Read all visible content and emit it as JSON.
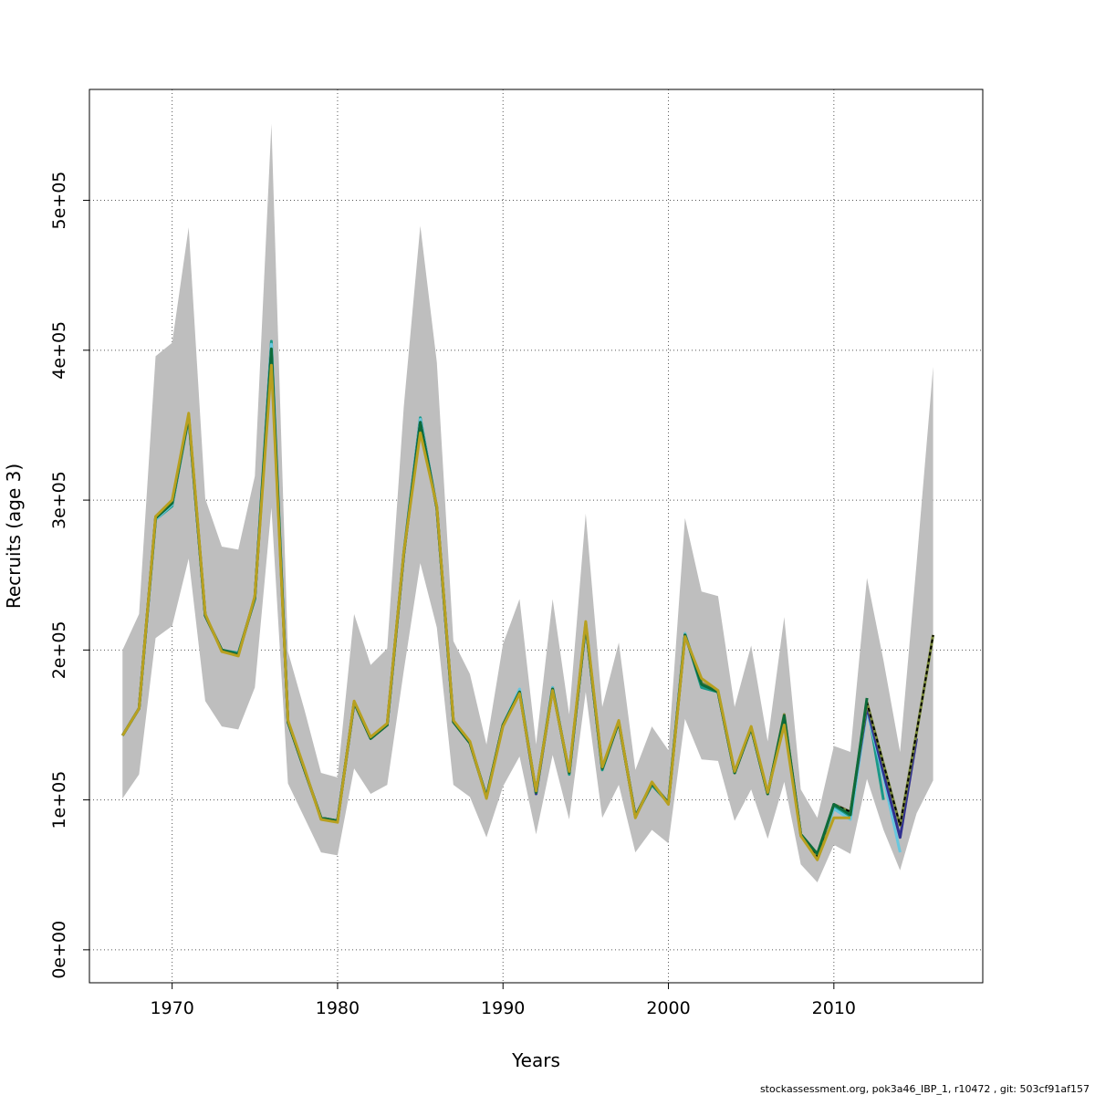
{
  "chart_data": {
    "type": "line",
    "title": "",
    "xlabel": "Years",
    "ylabel": "Recruits (age 3)",
    "xlim": [
      1965,
      2019
    ],
    "ylim": [
      -22000,
      574000
    ],
    "grid": true,
    "x_ticks": [
      1970,
      1980,
      1990,
      2000,
      2010
    ],
    "x_tick_labels": [
      "1970",
      "1980",
      "1990",
      "2000",
      "2010"
    ],
    "y_ticks": [
      0,
      100000,
      200000,
      300000,
      400000,
      500000
    ],
    "y_tick_labels": [
      "0e+00",
      "1e+05",
      "2e+05",
      "3e+05",
      "4e+05",
      "5e+05"
    ],
    "confidence_band": {
      "x": [
        1967,
        1968,
        1969,
        1970,
        1971,
        1972,
        1973,
        1974,
        1975,
        1976,
        1977,
        1978,
        1979,
        1980,
        1981,
        1982,
        1983,
        1984,
        1985,
        1986,
        1987,
        1988,
        1989,
        1990,
        1991,
        1992,
        1993,
        1994,
        1995,
        1996,
        1997,
        1998,
        1999,
        2000,
        2001,
        2002,
        2003,
        2004,
        2005,
        2006,
        2007,
        2008,
        2009,
        2010,
        2011,
        2012,
        2013,
        2014,
        2015,
        2016
      ],
      "lower": [
        101000,
        117000,
        208000,
        216000,
        261000,
        166000,
        149000,
        147000,
        175000,
        295000,
        111000,
        88000,
        65000,
        63000,
        121000,
        104000,
        110000,
        186000,
        258000,
        215000,
        110000,
        102000,
        75000,
        109000,
        129000,
        77000,
        130000,
        87000,
        172000,
        88000,
        110000,
        65000,
        80000,
        71000,
        154000,
        127000,
        126000,
        86000,
        107000,
        74000,
        112000,
        57000,
        45000,
        70000,
        64000,
        114000,
        80000,
        53000,
        91000,
        113000
      ],
      "upper": [
        200000,
        224000,
        396000,
        405000,
        482000,
        301000,
        269000,
        267000,
        316000,
        551000,
        199000,
        160000,
        118000,
        115000,
        224000,
        190000,
        201000,
        362000,
        483000,
        392000,
        206000,
        184000,
        137000,
        204000,
        234000,
        137000,
        234000,
        157000,
        291000,
        162000,
        205000,
        120000,
        149000,
        133000,
        288000,
        239000,
        236000,
        162000,
        203000,
        139000,
        222000,
        107000,
        88000,
        136000,
        132000,
        248000,
        193000,
        132000,
        258000,
        389000
      ]
    },
    "series": [
      {
        "color": "#1a9988",
        "x": [
          1967,
          1968,
          1969,
          1970,
          1971,
          1972,
          1973,
          1974,
          1975,
          1976,
          1977,
          1978,
          1979,
          1980,
          1981,
          1982,
          1983,
          1984,
          1985,
          1986,
          1987,
          1988,
          1989,
          1990,
          1991,
          1992,
          1993,
          1994,
          1995,
          1996,
          1997,
          1998,
          1999,
          2000,
          2001,
          2002,
          2003,
          2004,
          2005,
          2006,
          2007,
          2008,
          2009,
          2010,
          2011,
          2012,
          2013
        ],
        "y": [
          143000,
          161000,
          287000,
          296000,
          355000,
          223000,
          200000,
          198000,
          234000,
          406000,
          152000,
          120000,
          88000,
          86000,
          165000,
          141000,
          150000,
          265000,
          355000,
          295000,
          152000,
          138000,
          102000,
          150000,
          173000,
          105000,
          175000,
          117000,
          218000,
          120000,
          152000,
          89000,
          110000,
          98000,
          211000,
          175000,
          172000,
          118000,
          148000,
          104000,
          155000,
          77000,
          63000,
          95000,
          88000,
          165000,
          100000
        ]
      },
      {
        "color": "#67c7de",
        "x": [
          1967,
          1968,
          1969,
          1970,
          1971,
          1972,
          1973,
          1974,
          1975,
          1976,
          1977,
          1978,
          1979,
          1980,
          1981,
          1982,
          1983,
          1984,
          1985,
          1986,
          1987,
          1988,
          1989,
          1990,
          1991,
          1992,
          1993,
          1994,
          1995,
          1996,
          1997,
          1998,
          1999,
          2000,
          2001,
          2002,
          2003,
          2004,
          2005,
          2006,
          2007,
          2008,
          2009,
          2010,
          2011,
          2012,
          2013,
          2014
        ],
        "y": [
          143000,
          161000,
          287000,
          297000,
          356000,
          223000,
          200000,
          197000,
          235000,
          404000,
          152000,
          120000,
          88000,
          86000,
          165000,
          141000,
          150000,
          264000,
          354000,
          295000,
          152000,
          138000,
          102000,
          150000,
          174000,
          104000,
          175000,
          118000,
          217000,
          121000,
          152000,
          89000,
          111000,
          98000,
          211000,
          177000,
          173000,
          118000,
          148000,
          104000,
          156000,
          77000,
          62000,
          94000,
          87000,
          160000,
          115000,
          65000
        ]
      },
      {
        "color": "#303090",
        "x": [
          1967,
          1968,
          1969,
          1970,
          1971,
          1972,
          1973,
          1974,
          1975,
          1976,
          1977,
          1978,
          1979,
          1980,
          1981,
          1982,
          1983,
          1984,
          1985,
          1986,
          1987,
          1988,
          1989,
          1990,
          1991,
          1992,
          1993,
          1994,
          1995,
          1996,
          1997,
          1998,
          1999,
          2000,
          2001,
          2002,
          2003,
          2004,
          2005,
          2006,
          2007,
          2008,
          2009,
          2010,
          2011,
          2012,
          2013,
          2014,
          2015
        ],
        "y": [
          143000,
          161000,
          288000,
          298000,
          356000,
          223000,
          200000,
          197000,
          235000,
          400000,
          152000,
          120000,
          88000,
          86000,
          165000,
          141000,
          150000,
          264000,
          352000,
          295000,
          152000,
          138000,
          102000,
          150000,
          172000,
          104000,
          174000,
          118000,
          217000,
          121000,
          152000,
          89000,
          111000,
          98000,
          210000,
          178000,
          172000,
          118000,
          148000,
          104000,
          156000,
          77000,
          62000,
          97000,
          92000,
          162000,
          118000,
          75000,
          141000
        ]
      },
      {
        "color": "#7a8a3a",
        "x": [
          1967,
          1968,
          1969,
          1970,
          1971,
          1972,
          1973,
          1974,
          1975,
          1976,
          1977,
          1978,
          1979,
          1980,
          1981,
          1982,
          1983,
          1984,
          1985,
          1986,
          1987,
          1988,
          1989,
          1990,
          1991,
          1992,
          1993,
          1994,
          1995,
          1996,
          1997,
          1998,
          1999,
          2000,
          2001,
          2002,
          2003,
          2004,
          2005,
          2006,
          2007,
          2008,
          2009,
          2010,
          2011,
          2012,
          2013,
          2014,
          2015,
          2016
        ],
        "y": [
          143000,
          161000,
          288000,
          298000,
          356000,
          223000,
          200000,
          197000,
          235000,
          398000,
          152000,
          120000,
          88000,
          86000,
          165000,
          141000,
          150000,
          264000,
          350000,
          295000,
          152000,
          138000,
          102000,
          150000,
          172000,
          105000,
          174000,
          118000,
          217000,
          121000,
          152000,
          89000,
          111000,
          98000,
          210000,
          178000,
          172000,
          118000,
          148000,
          104000,
          157000,
          77000,
          62000,
          97000,
          92000,
          165000,
          124000,
          83000,
          145000,
          210000
        ],
        "dashed_overlay": true
      },
      {
        "color": "#0d6b3a",
        "x": [
          1967,
          1968,
          1969,
          1970,
          1971,
          1972,
          1973,
          1974,
          1975,
          1976,
          1977,
          1978,
          1979,
          1980,
          1981,
          1982,
          1983,
          1984,
          1985,
          1986,
          1987,
          1988,
          1989,
          1990,
          1991,
          1992,
          1993,
          1994,
          1995,
          1996,
          1997,
          1998,
          1999,
          2000,
          2001,
          2002,
          2003,
          2004,
          2005,
          2006,
          2007,
          2008,
          2009,
          2010,
          2011,
          2012
        ],
        "y": [
          143000,
          161000,
          288000,
          298000,
          356000,
          223000,
          200000,
          197000,
          235000,
          401000,
          152000,
          120000,
          88000,
          86000,
          165000,
          141000,
          150000,
          264000,
          352000,
          295000,
          152000,
          138000,
          102000,
          150000,
          172000,
          105000,
          174000,
          118000,
          217000,
          121000,
          152000,
          89000,
          111000,
          98000,
          210000,
          177000,
          172000,
          118000,
          148000,
          104000,
          156000,
          77000,
          64000,
          97000,
          90000,
          168000
        ]
      },
      {
        "color": "#b8a020",
        "x": [
          1967,
          1968,
          1969,
          1970,
          1971,
          1972,
          1973,
          1974,
          1975,
          1976,
          1977,
          1978,
          1979,
          1980,
          1981,
          1982,
          1983,
          1984,
          1985,
          1986,
          1987,
          1988,
          1989,
          1990,
          1991,
          1992,
          1993,
          1994,
          1995,
          1996,
          1997,
          1998,
          1999,
          2000,
          2001,
          2002,
          2003,
          2004,
          2005,
          2006,
          2007,
          2008,
          2009,
          2010,
          2011
        ],
        "y": [
          143000,
          161000,
          289000,
          300000,
          358000,
          224000,
          199000,
          196000,
          236000,
          390000,
          153000,
          121000,
          87000,
          85000,
          166000,
          142000,
          151000,
          265000,
          345000,
          296000,
          153000,
          139000,
          101000,
          149000,
          171000,
          106000,
          173000,
          119000,
          219000,
          122000,
          153000,
          88000,
          112000,
          97000,
          209000,
          181000,
          173000,
          119000,
          149000,
          105000,
          150000,
          76000,
          60000,
          88000,
          88000
        ]
      }
    ],
    "footer_note": "stockassessment.org, pok3a46_IBP_1, r10472 , git: 503cf91af157"
  }
}
